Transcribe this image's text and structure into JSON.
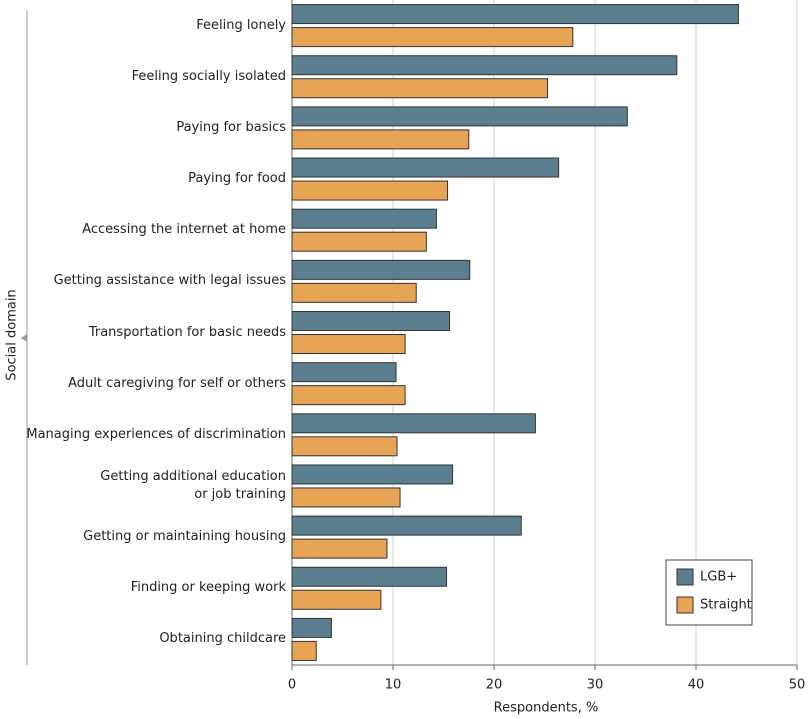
{
  "chart_data": {
    "type": "hbar",
    "x_label": "Respondents, %",
    "y_label": "Social domain",
    "categories": [
      "Feeling lonely",
      "Feeling socially isolated",
      "Paying for basics",
      "Paying for food",
      "Accessing the internet at home",
      "Getting assistance with legal issues",
      "Transportation for basic needs",
      "Adult caregiving for self or others",
      "Managing experiences of discrimination",
      "Getting additional education\nor job training",
      "Getting or maintaining housing",
      "Finding or keeping work",
      "Obtaining childcare"
    ],
    "series": [
      {
        "name": "LGB+",
        "color": "#5b7f8e",
        "values": [
          44.2,
          38.1,
          33.2,
          26.4,
          14.3,
          17.6,
          15.6,
          10.3,
          24.1,
          15.9,
          22.7,
          15.3,
          3.9
        ]
      },
      {
        "name": "Straight",
        "color": "#e8a455",
        "values": [
          27.8,
          25.3,
          17.5,
          15.4,
          13.3,
          12.3,
          11.2,
          11.2,
          10.4,
          10.7,
          9.4,
          8.8,
          2.4
        ]
      }
    ],
    "xlim": [
      0,
      50
    ],
    "xticks": [
      0,
      10,
      20,
      30,
      40,
      50
    ],
    "grid": true
  }
}
